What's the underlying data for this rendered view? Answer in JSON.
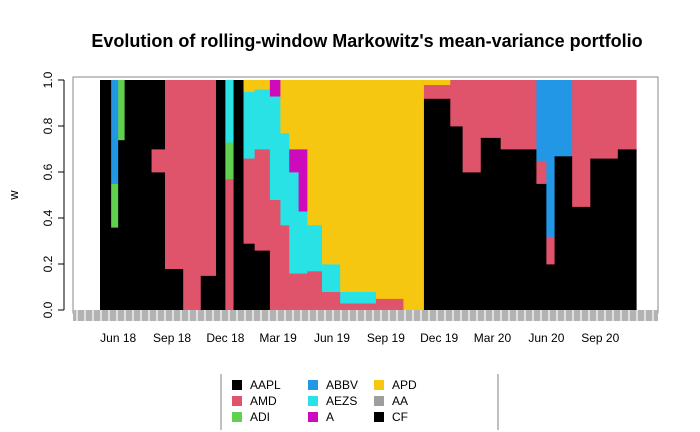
{
  "chart_data": {
    "type": "area",
    "title": "Evolution of rolling-window Markowitz's mean-variance portfolio",
    "xlabel": "",
    "ylabel": "w",
    "ylim": [
      0,
      1
    ],
    "y_ticks": [
      "0.0",
      "0.2",
      "0.4",
      "0.6",
      "0.8",
      "1.0"
    ],
    "x_tick_labels": [
      "Jun 18",
      "Sep 18",
      "Dec 18",
      "Mar 19",
      "Jun 19",
      "Sep 19",
      "Dec 19",
      "Mar 20",
      "Jun 20",
      "Sep 20"
    ],
    "x_tick_dates": [
      "2018-06-01",
      "2018-09-01",
      "2018-12-01",
      "2019-03-01",
      "2019-06-01",
      "2019-09-01",
      "2019-12-01",
      "2020-03-01",
      "2020-06-01",
      "2020-09-01"
    ],
    "legend_position": "bottom",
    "assets": [
      {
        "name": "AAPL",
        "color": "#000000"
      },
      {
        "name": "AMD",
        "color": "#DF536B"
      },
      {
        "name": "ADI",
        "color": "#61D04F"
      },
      {
        "name": "ABBV",
        "color": "#2297E6"
      },
      {
        "name": "AEZS",
        "color": "#28E2E5"
      },
      {
        "name": "A",
        "color": "#CD0BBC"
      },
      {
        "name": "APD",
        "color": "#F5C710"
      },
      {
        "name": "AA",
        "color": "#9E9E9E"
      },
      {
        "name": "CF",
        "color": "#000000"
      }
    ],
    "periods": [
      {
        "start": "2018-05-01",
        "end": "2018-05-20",
        "weights": {
          "AAPL": 1.0
        }
      },
      {
        "start": "2018-05-20",
        "end": "2018-06-01",
        "weights": {
          "ADI": 0.19,
          "ABBV": 0.45,
          "AAPL": 0.36
        }
      },
      {
        "start": "2018-06-01",
        "end": "2018-06-12",
        "weights": {
          "ADI": 0.26,
          "AAPL": 0.74
        }
      },
      {
        "start": "2018-06-12",
        "end": "2018-07-28",
        "weights": {
          "CF": 1.0
        }
      },
      {
        "start": "2018-07-28",
        "end": "2018-08-20",
        "weights": {
          "AAPL": 0.6,
          "AMD": 0.1,
          "CF": 0.3
        }
      },
      {
        "start": "2018-08-20",
        "end": "2018-09-20",
        "weights": {
          "AMD": 0.82,
          "AAPL": 0.18
        }
      },
      {
        "start": "2018-09-20",
        "end": "2018-10-20",
        "weights": {
          "AMD": 1.0
        }
      },
      {
        "start": "2018-10-20",
        "end": "2018-11-15",
        "weights": {
          "AMD": 0.85,
          "AAPL": 0.15
        }
      },
      {
        "start": "2018-11-15",
        "end": "2018-12-01",
        "weights": {
          "CF": 1.0
        }
      },
      {
        "start": "2018-12-01",
        "end": "2018-12-15",
        "weights": {
          "AMD": 0.57,
          "ADI": 0.16,
          "AEZS": 0.27
        }
      },
      {
        "start": "2018-12-15",
        "end": "2019-01-01",
        "weights": {
          "CF": 1.0
        }
      },
      {
        "start": "2019-01-01",
        "end": "2019-01-20",
        "weights": {
          "AMD": 0.37,
          "AEZS": 0.29,
          "APD": 0.05,
          "AAPL": 0.29
        }
      },
      {
        "start": "2019-01-20",
        "end": "2019-02-15",
        "weights": {
          "AMD": 0.44,
          "AEZS": 0.26,
          "APD": 0.04,
          "AAPL": 0.26
        }
      },
      {
        "start": "2019-02-15",
        "end": "2019-03-05",
        "weights": {
          "AMD": 0.48,
          "AEZS": 0.45,
          "A": 0.07
        }
      },
      {
        "start": "2019-03-05",
        "end": "2019-03-20",
        "weights": {
          "AMD": 0.37,
          "AEZS": 0.4,
          "APD": 0.23
        }
      },
      {
        "start": "2019-03-20",
        "end": "2019-04-05",
        "weights": {
          "AMD": 0.16,
          "AEZS": 0.44,
          "A": 0.1,
          "APD": 0.3
        }
      },
      {
        "start": "2019-04-05",
        "end": "2019-04-20",
        "weights": {
          "AMD": 0.16,
          "AEZS": 0.27,
          "A": 0.27,
          "APD": 0.3
        }
      },
      {
        "start": "2019-04-20",
        "end": "2019-05-15",
        "weights": {
          "AMD": 0.17,
          "AEZS": 0.2,
          "APD": 0.63
        }
      },
      {
        "start": "2019-05-15",
        "end": "2019-06-15",
        "weights": {
          "AMD": 0.08,
          "AEZS": 0.12,
          "APD": 0.8
        }
      },
      {
        "start": "2019-06-15",
        "end": "2019-08-15",
        "weights": {
          "AMD": 0.03,
          "AEZS": 0.05,
          "APD": 0.92
        }
      },
      {
        "start": "2019-08-15",
        "end": "2019-10-01",
        "weights": {
          "AMD": 0.05,
          "APD": 0.95
        }
      },
      {
        "start": "2019-10-01",
        "end": "2019-11-05",
        "weights": {
          "APD": 1.0
        }
      },
      {
        "start": "2019-11-05",
        "end": "2019-12-20",
        "weights": {
          "AAPL": 0.92,
          "AMD": 0.06,
          "APD": 0.02
        }
      },
      {
        "start": "2019-12-20",
        "end": "2020-01-10",
        "weights": {
          "AAPL": 0.8,
          "AMD": 0.2
        }
      },
      {
        "start": "2020-01-10",
        "end": "2020-02-10",
        "weights": {
          "AAPL": 0.6,
          "AMD": 0.4
        }
      },
      {
        "start": "2020-02-10",
        "end": "2020-03-15",
        "weights": {
          "AAPL": 0.75,
          "AMD": 0.25
        }
      },
      {
        "start": "2020-03-15",
        "end": "2020-05-15",
        "weights": {
          "AAPL": 0.7,
          "AMD": 0.3
        }
      },
      {
        "start": "2020-05-15",
        "end": "2020-06-01",
        "weights": {
          "AAPL": 0.55,
          "AMD": 0.1,
          "ABBV": 0.35
        }
      },
      {
        "start": "2020-06-01",
        "end": "2020-06-15",
        "weights": {
          "AAPL": 0.2,
          "AMD": 0.12,
          "ABBV": 0.68
        }
      },
      {
        "start": "2020-06-15",
        "end": "2020-07-15",
        "weights": {
          "AAPL": 0.67,
          "ABBV": 0.33
        }
      },
      {
        "start": "2020-07-15",
        "end": "2020-08-15",
        "weights": {
          "AAPL": 0.45,
          "AMD": 0.55
        }
      },
      {
        "start": "2020-08-15",
        "end": "2020-10-01",
        "weights": {
          "AAPL": 0.66,
          "AMD": 0.34
        }
      },
      {
        "start": "2020-10-01",
        "end": "2020-11-01",
        "weights": {
          "AAPL": 0.7,
          "AMD": 0.3
        }
      }
    ]
  }
}
